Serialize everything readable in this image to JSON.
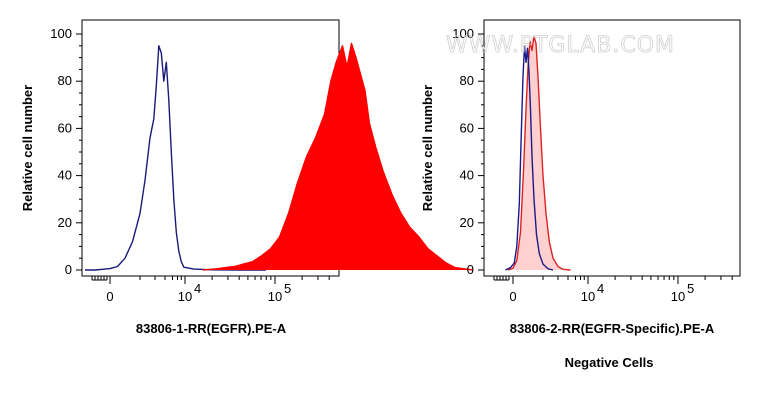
{
  "watermark": "WWW.PTGLAB.COM",
  "chart_data": [
    {
      "type": "area",
      "xlabel": "83806-1-RR(EGFR).PE-A",
      "ylabel": "Relative cell number",
      "subtitle": "",
      "ylim": [
        0,
        100
      ],
      "y_ticks": [
        "0",
        "20",
        "40",
        "60",
        "80",
        "100"
      ],
      "x_ticks": [
        {
          "base": "0",
          "exp": ""
        },
        {
          "base": "10",
          "exp": "4"
        },
        {
          "base": "10",
          "exp": "5"
        }
      ],
      "series": [
        {
          "color": "#1a1a7a",
          "fill": "none",
          "x": [
            -1.0,
            -0.6,
            -0.3,
            0.0,
            0.3,
            0.6,
            0.9,
            1.2,
            1.4,
            1.6,
            1.75,
            1.85,
            1.95,
            2.05,
            2.15,
            2.25,
            2.35,
            2.45,
            2.55,
            2.65,
            2.75,
            2.85,
            2.95,
            3.1,
            3.3,
            3.6,
            3.9
          ],
          "y": [
            0,
            0,
            0.3,
            0.6,
            1.5,
            5,
            12,
            24,
            38,
            56,
            64,
            78,
            95,
            92,
            80,
            88,
            72,
            50,
            30,
            16,
            8,
            3.5,
            1.2,
            0.4,
            0.1,
            0,
            0
          ]
        },
        {
          "color": "#ff0000",
          "fill": "#ff0000",
          "x": [
            3.2,
            3.35,
            3.45,
            3.55,
            3.65,
            3.75,
            3.85,
            3.95,
            4.05,
            4.15,
            4.25,
            4.35,
            4.45,
            4.55,
            4.62,
            4.68,
            4.75,
            4.8,
            4.85,
            4.9,
            4.95,
            5.0,
            5.05,
            5.12,
            5.2,
            5.3,
            5.4,
            5.5,
            5.6,
            5.7,
            5.8,
            5.9,
            6.0,
            6.2
          ],
          "y": [
            0,
            0.5,
            1,
            1.5,
            2.5,
            3.5,
            6,
            9,
            14,
            24,
            37,
            48,
            56,
            66,
            80,
            88,
            95,
            86,
            96,
            90,
            83,
            76,
            62,
            52,
            42,
            32,
            24,
            18,
            14,
            9,
            6,
            3,
            1,
            0
          ]
        }
      ]
    },
    {
      "type": "area",
      "xlabel": "83806-2-RR(EGFR-Specific).PE-A",
      "ylabel": "Relative cell number",
      "subtitle": "Negative Cells",
      "ylim": [
        0,
        100
      ],
      "y_ticks": [
        "0",
        "20",
        "40",
        "60",
        "80",
        "100"
      ],
      "x_ticks": [
        {
          "base": "0",
          "exp": ""
        },
        {
          "base": "10",
          "exp": "4"
        },
        {
          "base": "10",
          "exp": "5"
        }
      ],
      "series": [
        {
          "color": "#dd2222",
          "fill": "rgba(255,170,170,0.55)",
          "x": [
            -0.2,
            0.0,
            0.15,
            0.3,
            0.42,
            0.52,
            0.6,
            0.68,
            0.76,
            0.84,
            0.92,
            1.0,
            1.1,
            1.2,
            1.32,
            1.45,
            1.6,
            1.8,
            2.0,
            2.3
          ],
          "y": [
            0,
            0.8,
            4,
            16,
            42,
            68,
            86,
            97,
            93,
            99,
            96,
            82,
            60,
            40,
            24,
            12,
            5,
            1.5,
            0.3,
            0
          ]
        },
        {
          "color": "#1a1a8a",
          "fill": "none",
          "x": [
            -0.3,
            -0.1,
            0.05,
            0.15,
            0.25,
            0.33,
            0.4,
            0.46,
            0.52,
            0.58,
            0.64,
            0.7,
            0.76,
            0.84,
            0.94,
            1.05,
            1.2,
            1.4,
            1.6
          ],
          "y": [
            0,
            1,
            3,
            10,
            28,
            58,
            82,
            95,
            88,
            94,
            84,
            68,
            48,
            30,
            15,
            7,
            2.5,
            0.5,
            0
          ]
        }
      ]
    }
  ]
}
